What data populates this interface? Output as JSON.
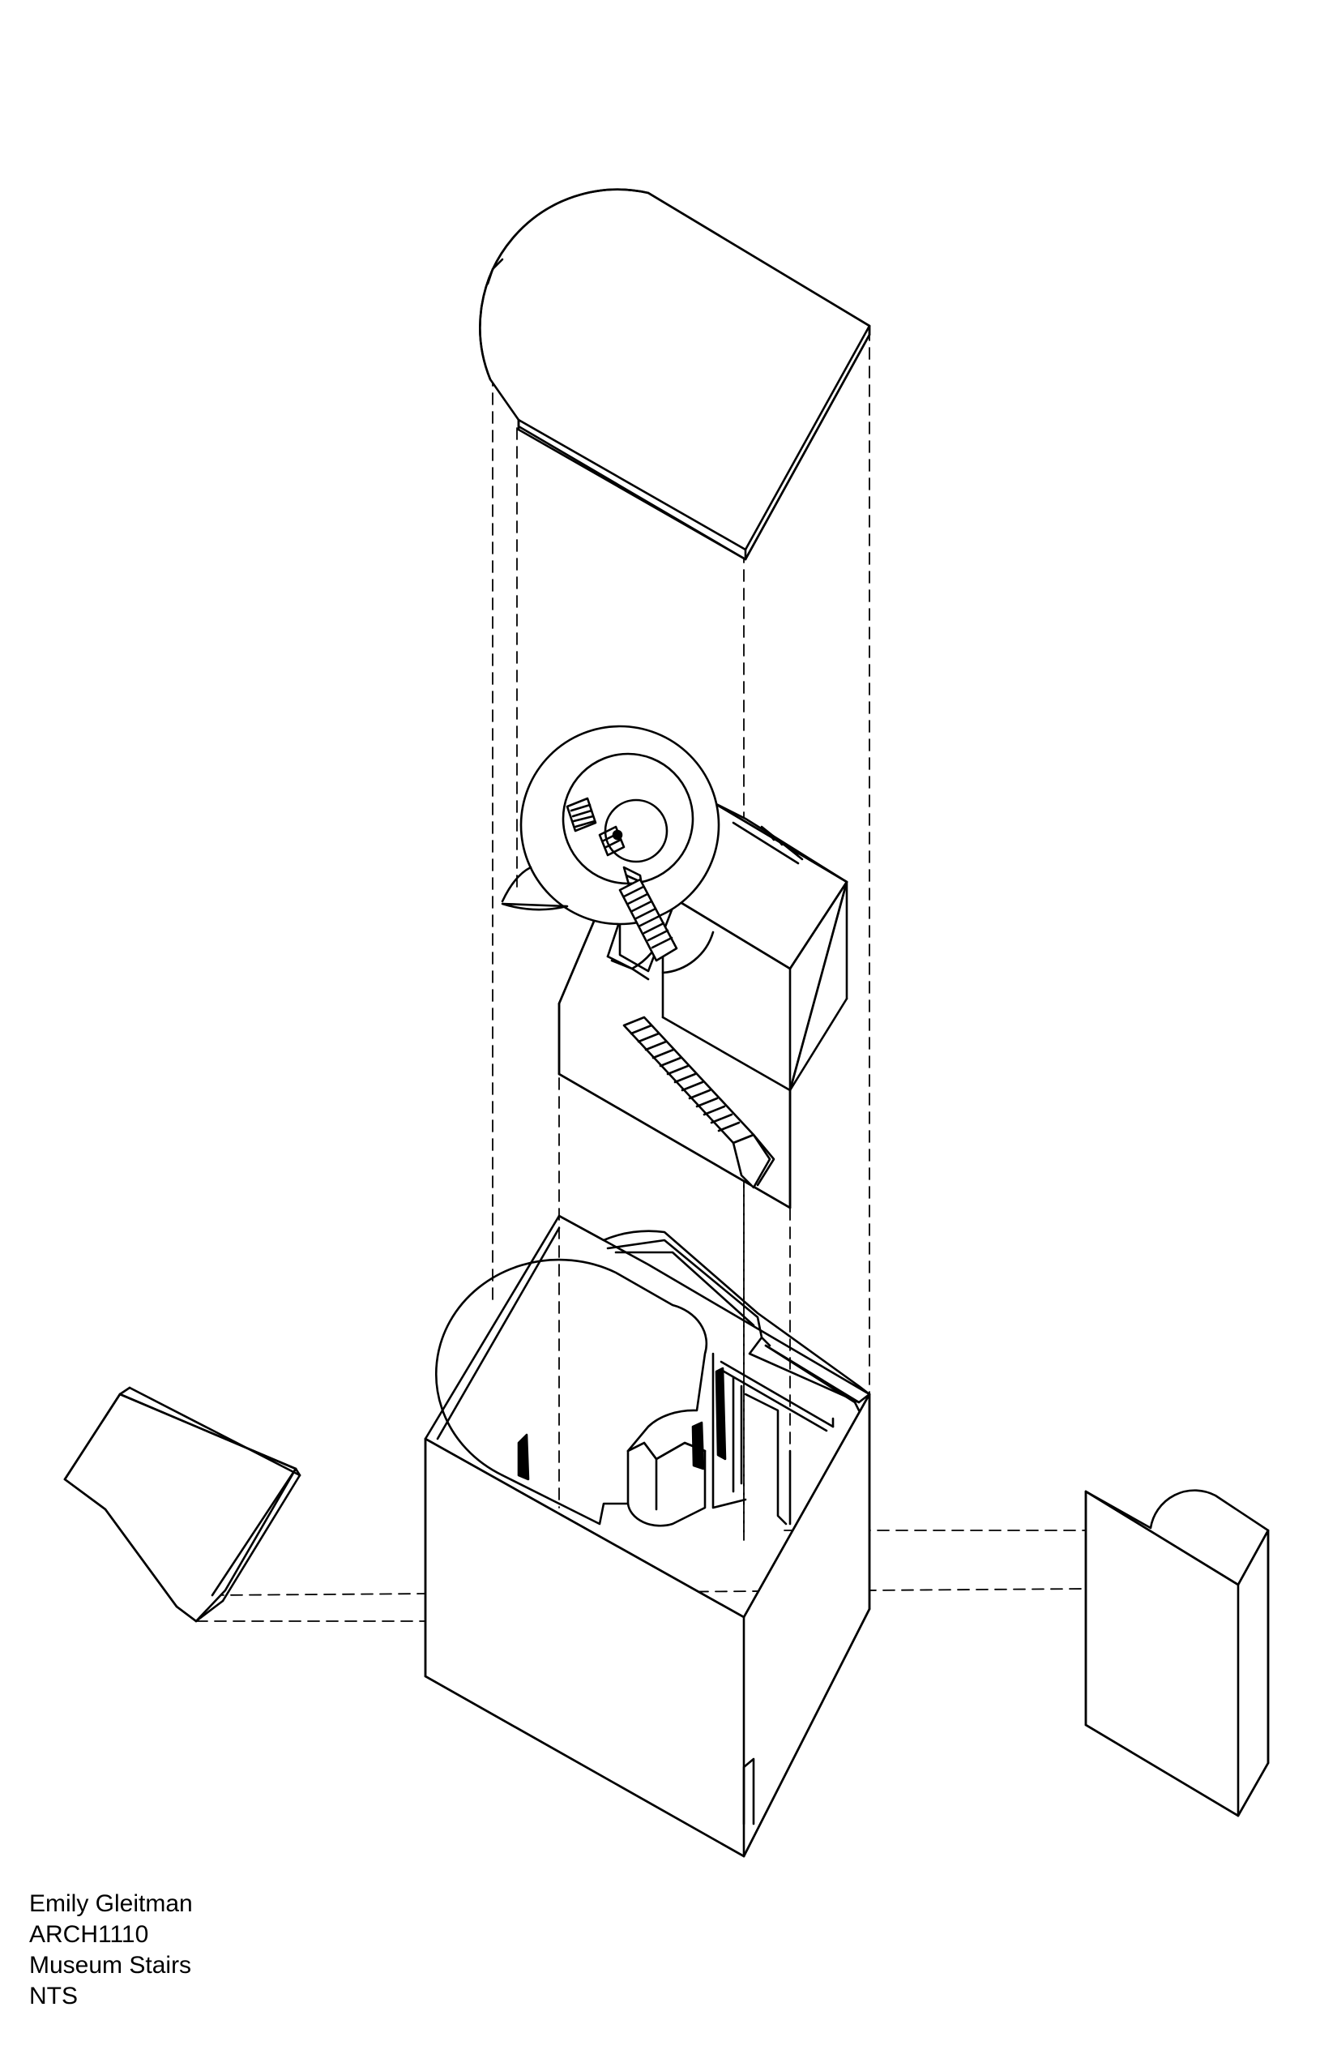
{
  "title_block": {
    "author": "Emily Gleitman",
    "course": "ARCH1110",
    "project": "Museum Stairs",
    "scale": "NTS"
  }
}
